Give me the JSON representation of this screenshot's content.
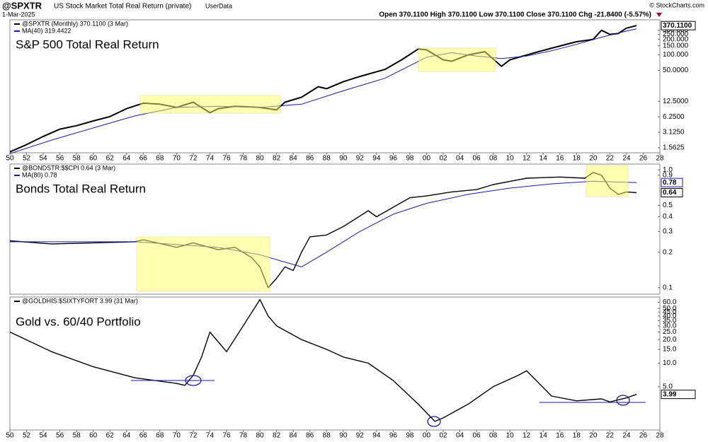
{
  "header": {
    "symbol": "@SPXTR",
    "name": "US Stock Market Total Real Return (private)",
    "source": "UserData",
    "date": "1-Mar-2025",
    "ohlc": "Open 370.1100  High 370.1100  Low 370.1100  Close 370.1100  Chg -21.8400 (-5.57%)",
    "credit": "© StockCharts.com"
  },
  "chart_data": [
    {
      "type": "line",
      "title": "S&P 500 Total Real Return",
      "log_scale": true,
      "last_value_label": "370.1100",
      "xlim": [
        1950,
        2028
      ],
      "ylim": [
        1.25,
        480
      ],
      "xticks": [
        {
          "value": 1950,
          "label": "50"
        },
        {
          "value": 1952,
          "label": "52"
        },
        {
          "value": 1954,
          "label": "54"
        },
        {
          "value": 1956,
          "label": "56"
        },
        {
          "value": 1958,
          "label": "58"
        },
        {
          "value": 1960,
          "label": "60"
        },
        {
          "value": 1962,
          "label": "62"
        },
        {
          "value": 1964,
          "label": "64"
        },
        {
          "value": 1966,
          "label": "66"
        },
        {
          "value": 1968,
          "label": "68"
        },
        {
          "value": 1970,
          "label": "70"
        },
        {
          "value": 1972,
          "label": "72"
        },
        {
          "value": 1974,
          "label": "74"
        },
        {
          "value": 1976,
          "label": "76"
        },
        {
          "value": 1978,
          "label": "78"
        },
        {
          "value": 1980,
          "label": "80"
        },
        {
          "value": 1982,
          "label": "82"
        },
        {
          "value": 1984,
          "label": "84"
        },
        {
          "value": 1986,
          "label": "86"
        },
        {
          "value": 1988,
          "label": "88"
        },
        {
          "value": 1990,
          "label": "90"
        },
        {
          "value": 1992,
          "label": "92"
        },
        {
          "value": 1994,
          "label": "94"
        },
        {
          "value": 1996,
          "label": "96"
        },
        {
          "value": 1998,
          "label": "98"
        },
        {
          "value": 2000,
          "label": "00"
        },
        {
          "value": 2002,
          "label": "02"
        },
        {
          "value": 2004,
          "label": "04"
        },
        {
          "value": 2006,
          "label": "06"
        },
        {
          "value": 2008,
          "label": "08"
        },
        {
          "value": 2010,
          "label": "10"
        },
        {
          "value": 2012,
          "label": "12"
        },
        {
          "value": 2014,
          "label": "14"
        },
        {
          "value": 2016,
          "label": "16"
        },
        {
          "value": 2018,
          "label": "18"
        },
        {
          "value": 2020,
          "label": "20"
        },
        {
          "value": 2022,
          "label": "22"
        },
        {
          "value": 2024,
          "label": "24"
        },
        {
          "value": 2026,
          "label": "26"
        },
        {
          "value": 2028,
          "label": "28"
        }
      ],
      "yticks": [
        {
          "value": 1.5625,
          "label": "1.5625"
        },
        {
          "value": 3.125,
          "label": "3.1250"
        },
        {
          "value": 6.25,
          "label": "6.2500"
        },
        {
          "value": 12.5,
          "label": "12.5000"
        },
        {
          "value": 50,
          "label": "50.0000"
        },
        {
          "value": 100,
          "label": "100.000"
        },
        {
          "value": 150,
          "label": "150.000"
        },
        {
          "value": 200,
          "label": "200.000"
        },
        {
          "value": 250,
          "label": "250.000"
        },
        {
          "value": 300,
          "label": "300.000"
        }
      ],
      "series": [
        {
          "name": "@SPXTR (Monthly) 370.1100 (3 Mar)",
          "color": "#000000",
          "x": [
            1950,
            1952,
            1954,
            1956,
            1958,
            1960,
            1962,
            1964,
            1966,
            1968,
            1970,
            1972,
            1974,
            1975,
            1977,
            1980,
            1982,
            1983,
            1985,
            1987,
            1988,
            1990,
            1992,
            1995,
            1997,
            1999,
            2000,
            2002,
            2003,
            2005,
            2007,
            2009,
            2010,
            2013,
            2015,
            2018,
            2020,
            2021,
            2022,
            2023,
            2024,
            2025.2
          ],
          "values": [
            1.3,
            1.8,
            2.6,
            3.6,
            4.2,
            5.2,
            6.3,
            9,
            11.5,
            11,
            9.5,
            12,
            7.5,
            9,
            10,
            9.5,
            8.5,
            12,
            15,
            24,
            22,
            30,
            38,
            52,
            80,
            130,
            125,
            80,
            75,
            100,
            115,
            60,
            80,
            110,
            135,
            180,
            200,
            300,
            250,
            260,
            330,
            370
          ]
        },
        {
          "name": "MA(40) 319.4422",
          "color": "#1a1aa8",
          "x": [
            1950,
            1955,
            1960,
            1965,
            1970,
            1975,
            1980,
            1985,
            1990,
            1995,
            2000,
            2003,
            2006,
            2009,
            2012,
            2015,
            2018,
            2021,
            2024,
            2025.2
          ],
          "values": [
            1.2,
            2.2,
            3.8,
            6.5,
            9.5,
            10,
            9.5,
            11,
            20,
            35,
            90,
            110,
            95,
            85,
            95,
            120,
            160,
            220,
            290,
            319.44
          ]
        }
      ]
    },
    {
      "type": "line",
      "title": "Bonds Total Real Return",
      "log_scale": true,
      "xlim": [
        1950,
        2028
      ],
      "ylim": [
        0.088,
        1.12
      ],
      "yticks": [
        0.1,
        0.2,
        0.3,
        0.4,
        0.5,
        0.9,
        {
          "value": 1,
          "label": "1.0"
        }
      ],
      "series": [
        {
          "name": "@BONDSTR:$$CPI 0.64 (3 Mar)",
          "color": "#000000",
          "last_value_label": "0.64",
          "x": [
            1950,
            1955,
            1960,
            1965,
            1966,
            1970,
            1972,
            1975,
            1977,
            1979,
            1980,
            1981,
            1982,
            1983,
            1984,
            1985,
            1986,
            1988,
            1990,
            1993,
            1994,
            1998,
            2000,
            2003,
            2006,
            2008,
            2012,
            2016,
            2019,
            2020,
            2021,
            2022,
            2023,
            2024,
            2025.2
          ],
          "values": [
            0.25,
            0.235,
            0.24,
            0.245,
            0.255,
            0.22,
            0.24,
            0.21,
            0.22,
            0.18,
            0.15,
            0.1,
            0.12,
            0.15,
            0.14,
            0.2,
            0.27,
            0.28,
            0.33,
            0.45,
            0.4,
            0.58,
            0.6,
            0.65,
            0.68,
            0.75,
            0.85,
            0.87,
            0.85,
            0.95,
            0.9,
            0.7,
            0.62,
            0.65,
            0.64
          ]
        },
        {
          "name": "MA(80) 0.78",
          "color": "#1a1aa8",
          "last_value_label": "0.78",
          "x": [
            1950,
            1965,
            1975,
            1980,
            1985,
            1988,
            1992,
            1996,
            2000,
            2005,
            2010,
            2015,
            2020,
            2025.2
          ],
          "values": [
            0.245,
            0.245,
            0.22,
            0.19,
            0.15,
            0.2,
            0.3,
            0.42,
            0.52,
            0.62,
            0.7,
            0.76,
            0.8,
            0.78
          ]
        }
      ]
    },
    {
      "type": "line",
      "title": "Gold vs. 60/40 Portfolio",
      "log_scale": true,
      "last_value_label": "3.99",
      "xlim": [
        1950,
        2028
      ],
      "ylim": [
        1.4,
        70
      ],
      "xticks": [
        {
          "value": 1950,
          "label": "50"
        },
        {
          "value": 1952,
          "label": "52"
        },
        {
          "value": 1954,
          "label": "54"
        },
        {
          "value": 1956,
          "label": "56"
        },
        {
          "value": 1958,
          "label": "58"
        },
        {
          "value": 1960,
          "label": "60"
        },
        {
          "value": 1962,
          "label": "62"
        },
        {
          "value": 1964,
          "label": "64"
        },
        {
          "value": 1966,
          "label": "66"
        },
        {
          "value": 1968,
          "label": "68"
        },
        {
          "value": 1970,
          "label": "70"
        },
        {
          "value": 1972,
          "label": "72"
        },
        {
          "value": 1974,
          "label": "74"
        },
        {
          "value": 1976,
          "label": "76"
        },
        {
          "value": 1978,
          "label": "78"
        },
        {
          "value": 1980,
          "label": "80"
        },
        {
          "value": 1982,
          "label": "82"
        },
        {
          "value": 1984,
          "label": "84"
        },
        {
          "value": 1986,
          "label": "86"
        },
        {
          "value": 1988,
          "label": "88"
        },
        {
          "value": 1990,
          "label": "90"
        },
        {
          "value": 1992,
          "label": "92"
        },
        {
          "value": 1994,
          "label": "94"
        },
        {
          "value": 1996,
          "label": "96"
        },
        {
          "value": 1998,
          "label": "98"
        },
        {
          "value": 2000,
          "label": "00"
        },
        {
          "value": 2002,
          "label": "02"
        },
        {
          "value": 2004,
          "label": "04"
        },
        {
          "value": 2006,
          "label": "06"
        },
        {
          "value": 2008,
          "label": "08"
        },
        {
          "value": 2010,
          "label": "10"
        },
        {
          "value": 2012,
          "label": "12"
        },
        {
          "value": 2014,
          "label": "14"
        },
        {
          "value": 2016,
          "label": "16"
        },
        {
          "value": 2018,
          "label": "18"
        },
        {
          "value": 2020,
          "label": "20"
        },
        {
          "value": 2022,
          "label": "22"
        },
        {
          "value": 2024,
          "label": "24"
        },
        {
          "value": 2026,
          "label": "26"
        },
        {
          "value": 2028,
          "label": "28"
        }
      ],
      "yticks": [
        {
          "value": 5,
          "label": "5.0"
        },
        {
          "value": 10,
          "label": "10.0"
        },
        {
          "value": 15,
          "label": "15.0"
        },
        {
          "value": 20,
          "label": "20.0"
        },
        {
          "value": 25,
          "label": "25.0"
        },
        {
          "value": 30,
          "label": "30.0"
        },
        {
          "value": 35,
          "label": "35.0"
        },
        {
          "value": 40,
          "label": "40.0"
        },
        {
          "value": 45,
          "label": "45.0"
        },
        {
          "value": 50,
          "label": "50.0"
        },
        {
          "value": 60,
          "label": "60.0"
        }
      ],
      "series": [
        {
          "name": "@GOLDHIS:$SIXTYFORT 3.99 (31 Mar)",
          "color": "#000000",
          "x": [
            1950,
            1955,
            1960,
            1965,
            1970,
            1971,
            1972,
            1973,
            1974,
            1976,
            1978,
            1980,
            1981,
            1982,
            1985,
            1988,
            1990,
            1993,
            1996,
            1999,
            2001,
            2002,
            2005,
            2008,
            2011,
            2012,
            2015,
            2018,
            2021,
            2022,
            2024,
            2025.2
          ],
          "values": [
            25,
            14,
            9,
            6.5,
            5.5,
            5.2,
            7,
            12,
            25,
            14,
            30,
            65,
            40,
            30,
            20,
            15,
            12,
            10,
            6,
            3,
            1.8,
            2,
            3,
            5,
            7,
            8,
            3.8,
            3.3,
            3.5,
            3.2,
            3.6,
            3.99
          ]
        }
      ]
    }
  ]
}
